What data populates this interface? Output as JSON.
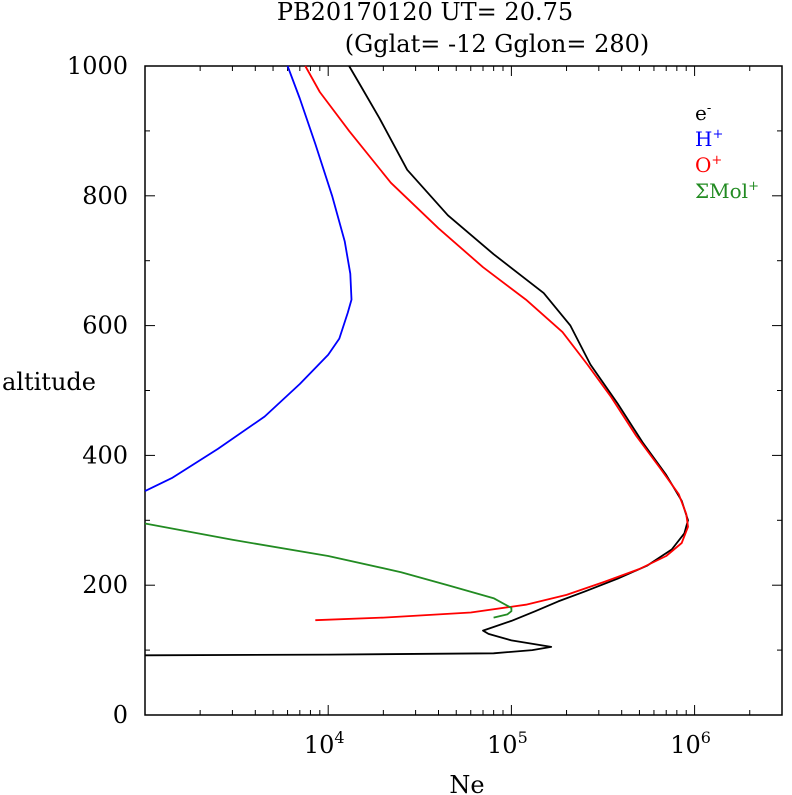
{
  "chart_data": {
    "type": "line",
    "title_line1": "PB20170120   UT=  20.75",
    "title_line2": "(Gglat= -12   Gglon=  280)",
    "xlabel": "Ne",
    "ylabel": "altitude",
    "x_scale": "log",
    "xlim": [
      1000,
      3000000
    ],
    "ylim": [
      0,
      1000
    ],
    "y_ticks": [
      "0",
      "200",
      "400",
      "600",
      "800",
      "1000"
    ],
    "x_ticks": [
      {
        "base": "10",
        "exp": "4",
        "value": 10000
      },
      {
        "base": "10",
        "exp": "5",
        "value": 100000
      },
      {
        "base": "10",
        "exp": "6",
        "value": 1000000
      }
    ],
    "legend_position": "top-right",
    "series": [
      {
        "name": "e",
        "sup": "-",
        "color": "#000000",
        "points": [
          [
            1000,
            92
          ],
          [
            10000,
            93
          ],
          [
            80000,
            95
          ],
          [
            130000,
            100
          ],
          [
            165000,
            105
          ],
          [
            100000,
            115
          ],
          [
            75000,
            125
          ],
          [
            70000,
            130
          ],
          [
            100000,
            145
          ],
          [
            135000,
            160
          ],
          [
            180000,
            175
          ],
          [
            250000,
            190
          ],
          [
            380000,
            210
          ],
          [
            550000,
            230
          ],
          [
            750000,
            255
          ],
          [
            880000,
            280
          ],
          [
            920000,
            300
          ],
          [
            850000,
            330
          ],
          [
            700000,
            370
          ],
          [
            520000,
            420
          ],
          [
            380000,
            480
          ],
          [
            270000,
            540
          ],
          [
            210000,
            600
          ],
          [
            150000,
            650
          ],
          [
            80000,
            710
          ],
          [
            45000,
            770
          ],
          [
            27000,
            840
          ],
          [
            19000,
            920
          ],
          [
            15000,
            970
          ],
          [
            13000,
            1000
          ]
        ]
      },
      {
        "name": "H",
        "sup": "+",
        "color": "#0000ff",
        "points": [
          [
            1000,
            345
          ],
          [
            1400,
            365
          ],
          [
            2500,
            410
          ],
          [
            4500,
            460
          ],
          [
            7000,
            510
          ],
          [
            10000,
            555
          ],
          [
            11500,
            580
          ],
          [
            12800,
            620
          ],
          [
            13400,
            640
          ],
          [
            13200,
            680
          ],
          [
            12300,
            730
          ],
          [
            10500,
            800
          ],
          [
            8500,
            880
          ],
          [
            7000,
            950
          ],
          [
            6000,
            1000
          ]
        ]
      },
      {
        "name": "O",
        "sup": "+",
        "color": "#ff0000",
        "points": [
          [
            8500,
            146
          ],
          [
            20000,
            150
          ],
          [
            60000,
            158
          ],
          [
            120000,
            170
          ],
          [
            200000,
            185
          ],
          [
            320000,
            205
          ],
          [
            500000,
            225
          ],
          [
            700000,
            245
          ],
          [
            850000,
            265
          ],
          [
            920000,
            290
          ],
          [
            900000,
            310
          ],
          [
            820000,
            340
          ],
          [
            650000,
            380
          ],
          [
            480000,
            430
          ],
          [
            350000,
            490
          ],
          [
            260000,
            540
          ],
          [
            190000,
            590
          ],
          [
            120000,
            640
          ],
          [
            70000,
            690
          ],
          [
            40000,
            750
          ],
          [
            22000,
            820
          ],
          [
            13000,
            900
          ],
          [
            9000,
            960
          ],
          [
            7500,
            1000
          ]
        ]
      },
      {
        "name": "ΣMol",
        "sup": "+",
        "color": "#228b22",
        "points": [
          [
            1000,
            295
          ],
          [
            3000,
            270
          ],
          [
            10000,
            245
          ],
          [
            25000,
            220
          ],
          [
            45000,
            200
          ],
          [
            80000,
            180
          ],
          [
            100000,
            165
          ],
          [
            100000,
            160
          ],
          [
            95000,
            155
          ],
          [
            80000,
            150
          ]
        ]
      }
    ]
  }
}
